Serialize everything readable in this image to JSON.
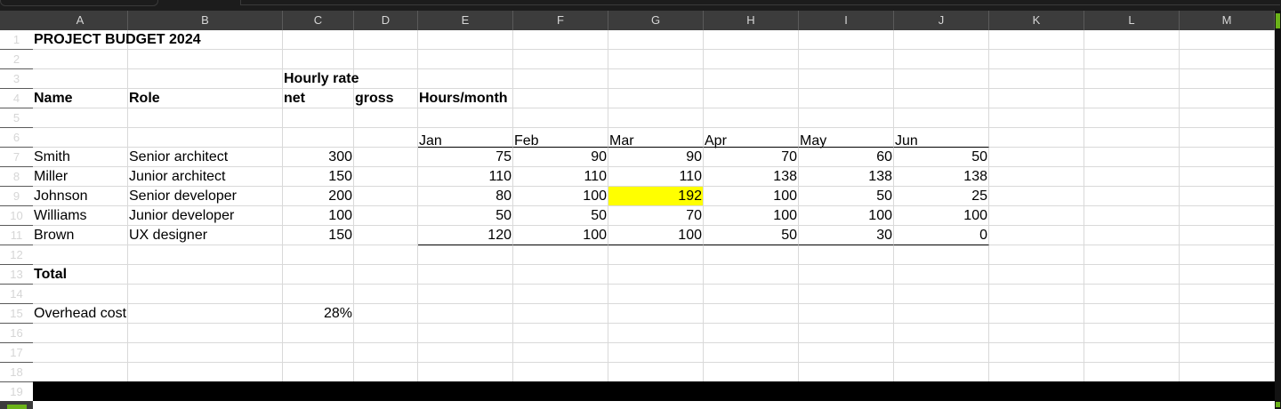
{
  "columns": [
    "A",
    "B",
    "C",
    "D",
    "E",
    "F",
    "G",
    "H",
    "I",
    "J",
    "K",
    "L",
    "M"
  ],
  "rows": [
    "1",
    "2",
    "3",
    "4",
    "5",
    "6",
    "7",
    "8",
    "9",
    "10",
    "11",
    "12",
    "13",
    "14",
    "15",
    "16",
    "17",
    "18",
    "19"
  ],
  "sheet": {
    "title": "PROJECT BUDGET 2024",
    "hourly_rate_label": "Hourly rate",
    "headers": {
      "name": "Name",
      "role": "Role",
      "net": "net",
      "gross": "gross",
      "hours": "Hours/month"
    },
    "months": [
      "Jan",
      "Feb",
      "Mar",
      "Apr",
      "May",
      "Jun"
    ],
    "people": [
      {
        "name": "Smith",
        "role": "Senior architect",
        "rate": "300",
        "hours": [
          "75",
          "90",
          "90",
          "70",
          "60",
          "50"
        ]
      },
      {
        "name": "Miller",
        "role": "Junior architect",
        "rate": "150",
        "hours": [
          "110",
          "110",
          "110",
          "138",
          "138",
          "138"
        ]
      },
      {
        "name": "Johnson",
        "role": "Senior developer",
        "rate": "200",
        "hours": [
          "80",
          "100",
          "192",
          "100",
          "50",
          "25"
        ]
      },
      {
        "name": "Williams",
        "role": "Junior developer",
        "rate": "100",
        "hours": [
          "50",
          "50",
          "70",
          "100",
          "100",
          "100"
        ]
      },
      {
        "name": "Brown",
        "role": "UX designer",
        "rate": "150",
        "hours": [
          "120",
          "100",
          "100",
          "50",
          "30",
          "0"
        ]
      }
    ],
    "total_label": "Total",
    "overhead_label": "Overhead cost",
    "overhead_value": "28%"
  },
  "highlight": {
    "person_index": 2,
    "month_index": 2,
    "color": "#ffff00"
  },
  "colors": {
    "header_bg": "#3c3c3c",
    "header_text": "#d6d6d6",
    "accent": "#6bb319"
  }
}
